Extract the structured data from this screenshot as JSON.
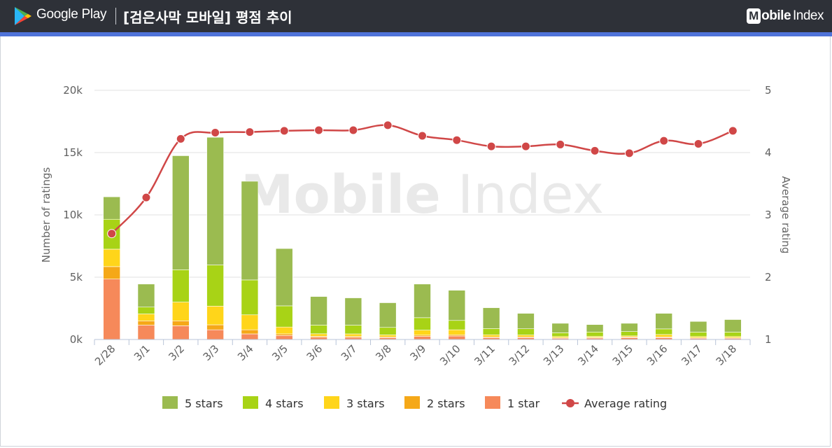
{
  "header": {
    "store_name": "Google Play",
    "title": "[검은사막 모바일] 평점 추이",
    "brand_badge": "M",
    "brand_rest": "obile",
    "brand_index": "Index"
  },
  "colors": {
    "header_bg": "#2e3138",
    "accent": "#4f73d9",
    "five_stars": "#9bbb50",
    "four_stars": "#a8d316",
    "three_stars": "#ffd51a",
    "two_stars": "#f5a818",
    "one_star": "#f6895a",
    "average": "#d04747"
  },
  "chart_data": {
    "type": "bar",
    "stacked": true,
    "watermark": "Mobile Index",
    "categories": [
      "2/28",
      "3/1",
      "3/2",
      "3/3",
      "3/4",
      "3/5",
      "3/6",
      "3/7",
      "3/8",
      "3/9",
      "3/10",
      "3/11",
      "3/12",
      "3/13",
      "3/14",
      "3/15",
      "3/16",
      "3/17",
      "3/18"
    ],
    "ylabel": "Number of ratings",
    "y2label": "Average rating",
    "ylim": [
      0,
      20000
    ],
    "y2lim": [
      1,
      5
    ],
    "yticks": [
      "0k",
      "5k",
      "10k",
      "15k",
      "20k"
    ],
    "y2ticks": [
      "1",
      "2",
      "3",
      "4",
      "5"
    ],
    "grid": true,
    "legend_position": "bottom",
    "series": [
      {
        "name": "1 star",
        "values": [
          4850,
          1150,
          1100,
          780,
          450,
          320,
          180,
          170,
          150,
          250,
          280,
          150,
          150,
          100,
          120,
          150,
          150,
          100,
          100
        ]
      },
      {
        "name": "2 stars",
        "values": [
          1000,
          350,
          400,
          400,
          330,
          130,
          80,
          80,
          60,
          100,
          100,
          60,
          60,
          40,
          40,
          50,
          50,
          40,
          40
        ]
      },
      {
        "name": "3 stars",
        "values": [
          1400,
          550,
          1500,
          1500,
          1200,
          550,
          200,
          200,
          160,
          400,
          400,
          170,
          150,
          100,
          90,
          90,
          200,
          100,
          100
        ]
      },
      {
        "name": "4 stars",
        "values": [
          2400,
          550,
          2600,
          3300,
          2800,
          1700,
          700,
          700,
          600,
          1000,
          750,
          500,
          500,
          300,
          350,
          350,
          450,
          350,
          350
        ]
      },
      {
        "name": "5 stars",
        "values": [
          1800,
          1850,
          9150,
          10250,
          7920,
          4600,
          2290,
          2190,
          1980,
          2700,
          2420,
          1670,
          1240,
          760,
          600,
          660,
          1250,
          860,
          1010
        ]
      },
      {
        "name": "Average rating",
        "type": "line",
        "axis": "right",
        "values": [
          2.7,
          3.28,
          4.22,
          4.32,
          4.33,
          4.35,
          4.36,
          4.36,
          4.44,
          4.27,
          4.2,
          4.1,
          4.1,
          4.13,
          4.03,
          3.99,
          4.19,
          4.14,
          4.35
        ]
      }
    ]
  }
}
